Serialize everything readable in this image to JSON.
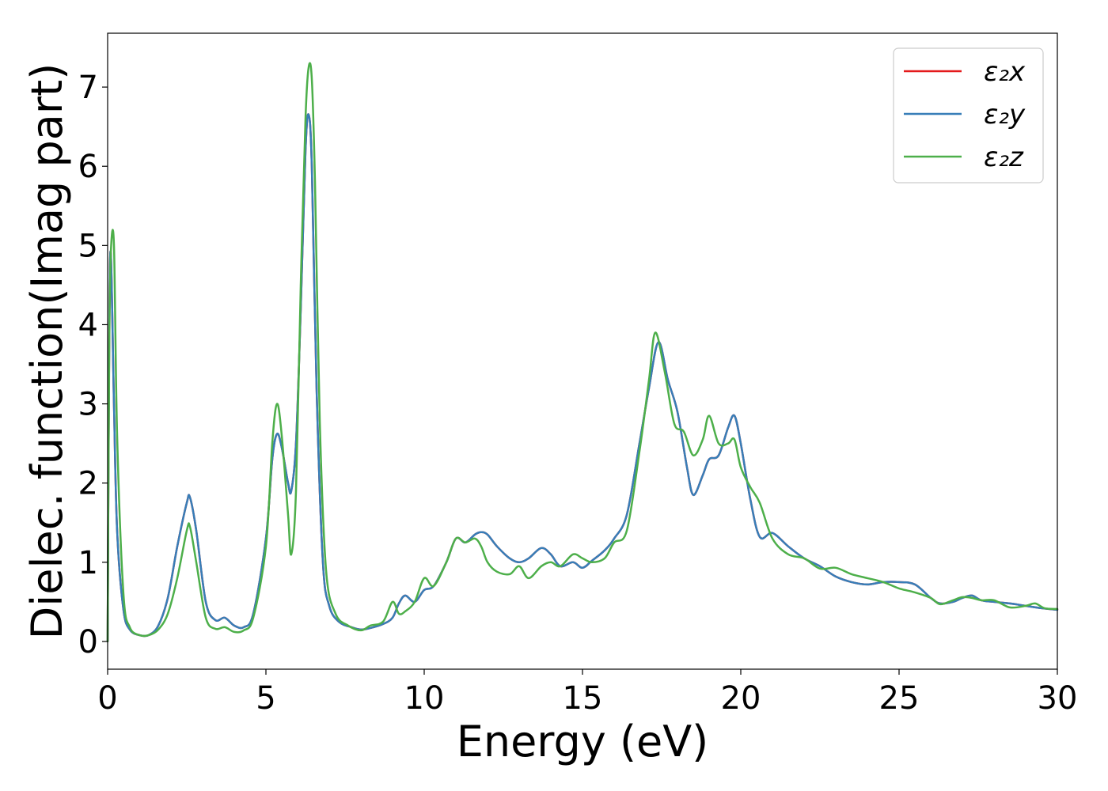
{
  "chart_data": {
    "type": "line",
    "title": "",
    "xlabel": "Energy (eV)",
    "ylabel": "Dielec. function(Imag part)",
    "xlim": [
      0,
      30
    ],
    "ylim": [
      -0.35,
      7.68
    ],
    "xticks": [
      0,
      5,
      10,
      15,
      20,
      25,
      30
    ],
    "yticks": [
      0,
      1,
      2,
      3,
      4,
      5,
      6,
      7
    ],
    "grid": false,
    "legend_position": "top-right",
    "series": [
      {
        "name": "ε₂x",
        "color": "#e41a1c",
        "x": [
          0,
          0.05,
          0.1,
          0.2,
          0.3,
          0.5,
          0.7,
          1.0,
          1.3,
          1.6,
          1.9,
          2.2,
          2.5,
          2.6,
          2.8,
          3.1,
          3.4,
          3.7,
          4.0,
          4.3,
          4.6,
          5.0,
          5.2,
          5.35,
          5.5,
          5.7,
          5.8,
          5.95,
          6.1,
          6.25,
          6.35,
          6.45,
          6.6,
          6.8,
          7.0,
          7.3,
          7.7,
          8.0,
          8.3,
          8.7,
          9.0,
          9.2,
          9.4,
          9.7,
          10.0,
          10.3,
          10.7,
          11.0,
          11.3,
          11.6,
          11.8,
          12.0,
          12.3,
          12.7,
          13.0,
          13.3,
          13.7,
          14.0,
          14.3,
          14.7,
          15.0,
          15.3,
          15.7,
          16.0,
          16.4,
          16.8,
          17.1,
          17.4,
          17.7,
          18.0,
          18.3,
          18.5,
          18.8,
          19.0,
          19.3,
          19.6,
          19.8,
          20.0,
          20.3,
          20.6,
          21.0,
          21.5,
          22.0,
          22.5,
          23.0,
          23.5,
          24.0,
          24.5,
          25.0,
          25.5,
          26.0,
          26.3,
          26.7,
          27.0,
          27.3,
          27.6,
          28.0,
          28.5,
          29.0,
          29.5,
          30.0
        ],
        "values": [
          0.0,
          3.8,
          4.9,
          3.0,
          1.4,
          0.4,
          0.15,
          0.08,
          0.08,
          0.2,
          0.55,
          1.2,
          1.75,
          1.82,
          1.4,
          0.5,
          0.27,
          0.3,
          0.2,
          0.18,
          0.35,
          1.3,
          2.3,
          2.62,
          2.45,
          2.0,
          1.9,
          2.5,
          4.2,
          6.2,
          6.65,
          6.0,
          3.2,
          1.0,
          0.45,
          0.25,
          0.18,
          0.15,
          0.17,
          0.22,
          0.3,
          0.48,
          0.58,
          0.5,
          0.65,
          0.7,
          1.0,
          1.3,
          1.25,
          1.35,
          1.38,
          1.35,
          1.2,
          1.05,
          1.0,
          1.05,
          1.18,
          1.1,
          0.95,
          1.0,
          0.93,
          1.02,
          1.15,
          1.3,
          1.6,
          2.5,
          3.2,
          3.78,
          3.3,
          2.9,
          2.2,
          1.85,
          2.1,
          2.3,
          2.35,
          2.7,
          2.85,
          2.5,
          1.8,
          1.32,
          1.37,
          1.2,
          1.05,
          0.95,
          0.82,
          0.75,
          0.72,
          0.75,
          0.75,
          0.72,
          0.55,
          0.48,
          0.5,
          0.55,
          0.58,
          0.52,
          0.5,
          0.48,
          0.45,
          0.42,
          0.4
        ]
      },
      {
        "name": "ε₂y",
        "color": "#377eb8",
        "x": [
          0,
          0.05,
          0.1,
          0.2,
          0.3,
          0.5,
          0.7,
          1.0,
          1.3,
          1.6,
          1.9,
          2.2,
          2.5,
          2.6,
          2.8,
          3.1,
          3.4,
          3.7,
          4.0,
          4.3,
          4.6,
          5.0,
          5.2,
          5.35,
          5.5,
          5.7,
          5.8,
          5.95,
          6.1,
          6.25,
          6.35,
          6.45,
          6.6,
          6.8,
          7.0,
          7.3,
          7.7,
          8.0,
          8.3,
          8.7,
          9.0,
          9.2,
          9.4,
          9.7,
          10.0,
          10.3,
          10.7,
          11.0,
          11.3,
          11.6,
          11.8,
          12.0,
          12.3,
          12.7,
          13.0,
          13.3,
          13.7,
          14.0,
          14.3,
          14.7,
          15.0,
          15.3,
          15.7,
          16.0,
          16.4,
          16.8,
          17.1,
          17.4,
          17.7,
          18.0,
          18.3,
          18.5,
          18.8,
          19.0,
          19.3,
          19.6,
          19.8,
          20.0,
          20.3,
          20.6,
          21.0,
          21.5,
          22.0,
          22.5,
          23.0,
          23.5,
          24.0,
          24.5,
          25.0,
          25.5,
          26.0,
          26.3,
          26.7,
          27.0,
          27.3,
          27.6,
          28.0,
          28.5,
          29.0,
          29.5,
          30.0
        ],
        "values": [
          0.0,
          3.8,
          4.9,
          3.0,
          1.4,
          0.4,
          0.15,
          0.08,
          0.08,
          0.2,
          0.55,
          1.2,
          1.75,
          1.82,
          1.4,
          0.5,
          0.27,
          0.3,
          0.2,
          0.18,
          0.35,
          1.3,
          2.3,
          2.62,
          2.45,
          2.0,
          1.9,
          2.5,
          4.2,
          6.2,
          6.65,
          6.0,
          3.2,
          1.0,
          0.45,
          0.25,
          0.18,
          0.15,
          0.17,
          0.22,
          0.3,
          0.48,
          0.58,
          0.5,
          0.65,
          0.7,
          1.0,
          1.3,
          1.25,
          1.35,
          1.38,
          1.35,
          1.2,
          1.05,
          1.0,
          1.05,
          1.18,
          1.1,
          0.95,
          1.0,
          0.93,
          1.02,
          1.15,
          1.3,
          1.6,
          2.5,
          3.2,
          3.78,
          3.3,
          2.9,
          2.2,
          1.85,
          2.1,
          2.3,
          2.35,
          2.7,
          2.85,
          2.5,
          1.8,
          1.32,
          1.37,
          1.2,
          1.05,
          0.95,
          0.82,
          0.75,
          0.72,
          0.75,
          0.75,
          0.72,
          0.55,
          0.48,
          0.5,
          0.55,
          0.58,
          0.52,
          0.5,
          0.48,
          0.45,
          0.42,
          0.4
        ]
      },
      {
        "name": "ε₂z",
        "color": "#4daf4a",
        "x": [
          0,
          0.05,
          0.1,
          0.2,
          0.3,
          0.5,
          0.7,
          1.0,
          1.3,
          1.6,
          1.9,
          2.2,
          2.5,
          2.6,
          2.8,
          3.1,
          3.4,
          3.7,
          4.0,
          4.3,
          4.6,
          5.0,
          5.2,
          5.35,
          5.5,
          5.7,
          5.8,
          5.95,
          6.1,
          6.25,
          6.35,
          6.45,
          6.55,
          6.7,
          6.9,
          7.2,
          7.6,
          8.0,
          8.3,
          8.7,
          9.0,
          9.2,
          9.4,
          9.7,
          10.0,
          10.3,
          10.7,
          11.0,
          11.3,
          11.6,
          11.8,
          12.0,
          12.3,
          12.7,
          13.0,
          13.3,
          13.7,
          14.0,
          14.3,
          14.7,
          15.0,
          15.3,
          15.7,
          16.0,
          16.4,
          16.8,
          17.1,
          17.3,
          17.6,
          17.9,
          18.2,
          18.5,
          18.8,
          19.0,
          19.3,
          19.6,
          19.8,
          20.0,
          20.3,
          20.6,
          21.0,
          21.5,
          22.0,
          22.5,
          23.0,
          23.5,
          24.0,
          24.5,
          25.0,
          25.5,
          26.0,
          26.3,
          26.7,
          27.0,
          27.3,
          27.6,
          28.0,
          28.5,
          29.0,
          29.3,
          29.6,
          30.0
        ],
        "values": [
          0.0,
          3.6,
          4.9,
          5.0,
          2.6,
          0.6,
          0.18,
          0.08,
          0.08,
          0.15,
          0.35,
          0.8,
          1.4,
          1.45,
          1.0,
          0.3,
          0.16,
          0.18,
          0.12,
          0.14,
          0.3,
          1.2,
          2.5,
          3.0,
          2.6,
          1.6,
          1.1,
          1.9,
          4.5,
          6.6,
          7.25,
          7.1,
          5.8,
          2.8,
          0.9,
          0.35,
          0.2,
          0.14,
          0.2,
          0.25,
          0.5,
          0.35,
          0.38,
          0.5,
          0.8,
          0.7,
          1.0,
          1.3,
          1.25,
          1.3,
          1.2,
          1.0,
          0.88,
          0.85,
          0.95,
          0.8,
          0.95,
          1.0,
          0.95,
          1.1,
          1.05,
          1.0,
          1.05,
          1.25,
          1.4,
          2.4,
          3.3,
          3.9,
          3.4,
          2.75,
          2.65,
          2.35,
          2.55,
          2.85,
          2.5,
          2.5,
          2.55,
          2.2,
          1.95,
          1.75,
          1.3,
          1.1,
          1.05,
          0.92,
          0.93,
          0.85,
          0.8,
          0.75,
          0.67,
          0.62,
          0.55,
          0.47,
          0.52,
          0.56,
          0.55,
          0.52,
          0.52,
          0.43,
          0.45,
          0.48,
          0.42,
          0.41
        ]
      }
    ]
  }
}
